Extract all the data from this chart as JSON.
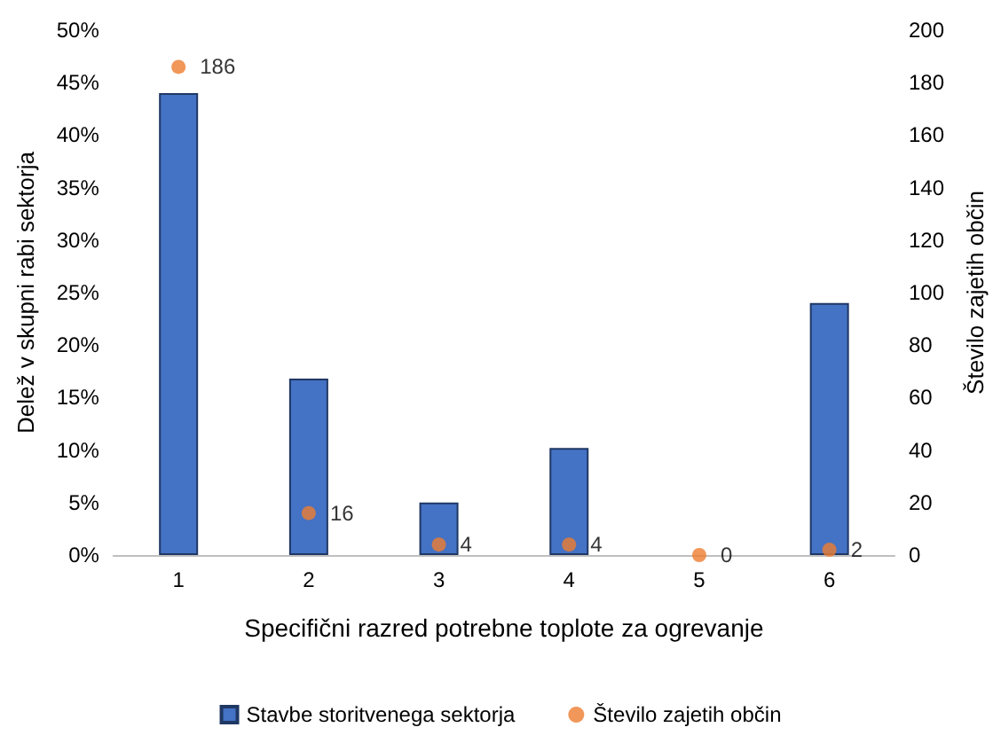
{
  "chart_data": {
    "type": "bar",
    "xlabel": "Specifični razred potrebne toplote za ogrevanje",
    "ylabel": "Delež v skupni rabi sektorja",
    "y2label": "Število zajetih občin",
    "categories": [
      "1",
      "2",
      "3",
      "4",
      "5",
      "6"
    ],
    "series": [
      {
        "name": "Stavbe storitvenega sektorja",
        "color": "#4472c4",
        "values": [
          44,
          16.8,
          5,
          10.2,
          0,
          24
        ]
      },
      {
        "name": "Število zajetih občin",
        "type": "scatter",
        "axis": "y2",
        "color": "#ed7d31",
        "values": [
          186,
          16,
          4,
          4,
          0,
          2
        ],
        "value_labels": [
          "186",
          "16",
          "4",
          "4",
          "0",
          "2"
        ]
      }
    ],
    "ylim": [
      0,
      50
    ],
    "yticks": [
      {
        "value": 0,
        "label": "0%"
      },
      {
        "value": 5,
        "label": "5%"
      },
      {
        "value": 10,
        "label": "10%"
      },
      {
        "value": 15,
        "label": "15%"
      },
      {
        "value": 20,
        "label": "20%"
      },
      {
        "value": 25,
        "label": "25%"
      },
      {
        "value": 30,
        "label": "30%"
      },
      {
        "value": 35,
        "label": "35%"
      },
      {
        "value": 40,
        "label": "40%"
      },
      {
        "value": 45,
        "label": "45%"
      },
      {
        "value": 50,
        "label": "50%"
      }
    ],
    "y2lim": [
      0,
      200
    ],
    "y2ticks": [
      0,
      20,
      40,
      60,
      80,
      100,
      120,
      140,
      160,
      180,
      200
    ],
    "grid": false,
    "legend": "bottom",
    "marker": "circle"
  }
}
